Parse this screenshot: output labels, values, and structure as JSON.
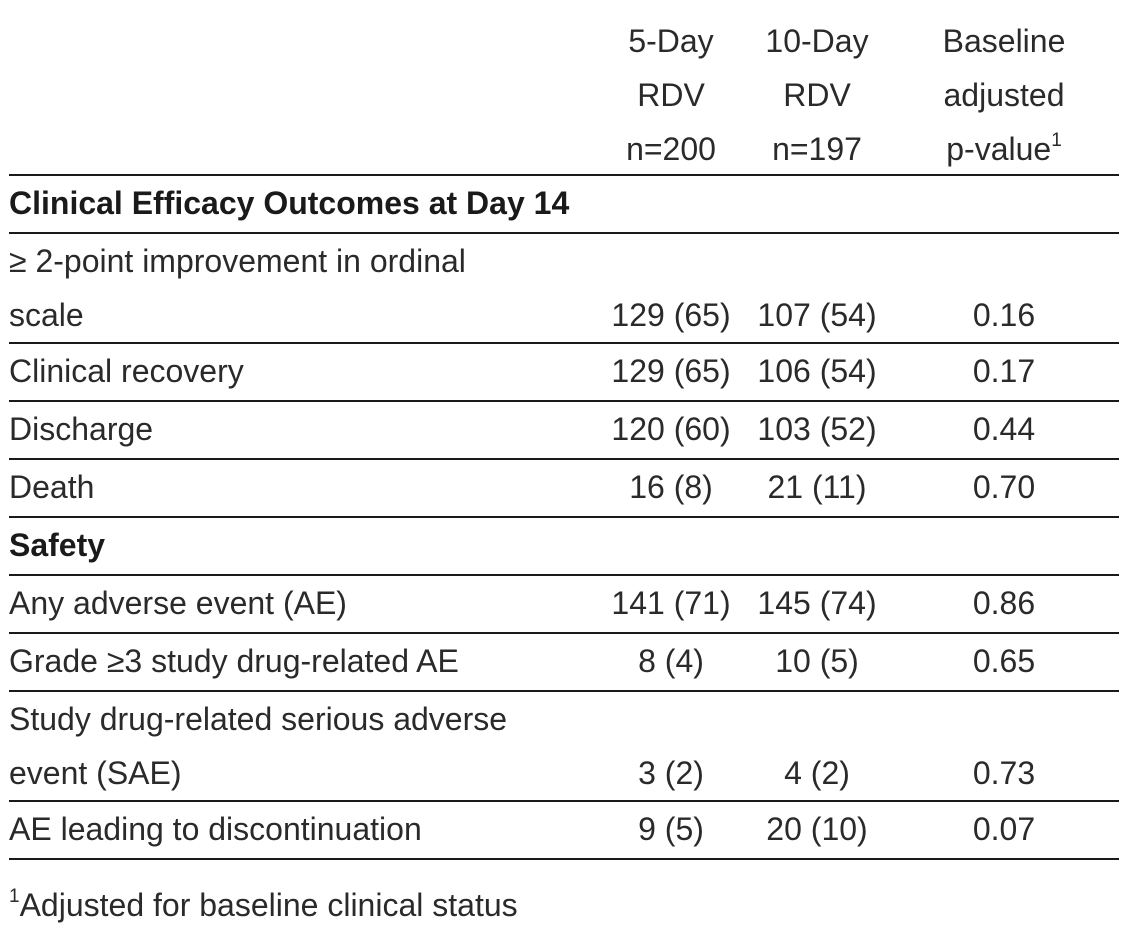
{
  "header": {
    "col1": {
      "line1": "5-Day",
      "line2": "RDV",
      "line3": "n=200"
    },
    "col2": {
      "line1": "10-Day",
      "line2": "RDV",
      "line3": "n=197"
    },
    "col3": {
      "line1": "Baseline",
      "line2": "adjusted",
      "line3": "p-value",
      "sup": "1"
    }
  },
  "sections": {
    "efficacy": "Clinical Efficacy Outcomes at Day 14",
    "safety": "Safety"
  },
  "rows": [
    {
      "label1": "≥ 2-point improvement in ordinal",
      "label2": "scale",
      "v1": "129 (65)",
      "v2": "107 (54)",
      "v3": "0.16"
    },
    {
      "label": "Clinical recovery",
      "v1": "129 (65)",
      "v2": "106 (54)",
      "v3": "0.17"
    },
    {
      "label": "Discharge",
      "v1": "120 (60)",
      "v2": "103 (52)",
      "v3": "0.44"
    },
    {
      "label": "Death",
      "v1": "16 (8)",
      "v2": "21 (11)",
      "v3": "0.70"
    },
    {
      "label": "Any adverse event (AE)",
      "v1": "141 (71)",
      "v2": "145 (74)",
      "v3": "0.86"
    },
    {
      "label": "Grade ≥3 study drug-related AE",
      "v1": "8 (4)",
      "v2": "10 (5)",
      "v3": "0.65"
    },
    {
      "label1": "Study drug-related serious adverse",
      "label2": "event (SAE)",
      "v1": "3 (2)",
      "v2": "4 (2)",
      "v3": "0.73"
    },
    {
      "label": "AE leading to discontinuation",
      "v1": "9 (5)",
      "v2": "20 (10)",
      "v3": "0.07"
    }
  ],
  "footnote": {
    "sup": "1",
    "text": "Adjusted for baseline clinical status"
  }
}
